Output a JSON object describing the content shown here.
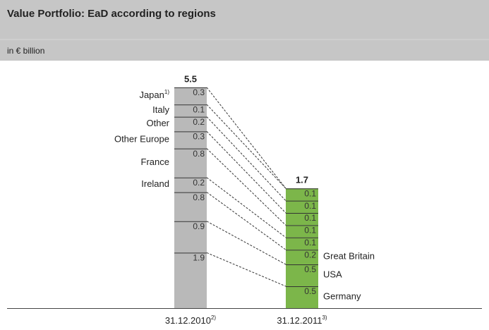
{
  "chart_data": {
    "type": "stacked-bar",
    "title": "Value Portfolio: EaD according to regions",
    "subtitle": "in € billion",
    "bars": [
      {
        "date": "31.12.2010",
        "note": "2)",
        "total": 5.5,
        "color": "#b9b9b9",
        "segments": [
          {
            "label": "Japan",
            "note": "1)",
            "value": 0.3
          },
          {
            "label": "Italy",
            "value": 0.1
          },
          {
            "label": "Other",
            "value": 0.2
          },
          {
            "label": "Other Europe",
            "value": 0.3
          },
          {
            "label": "France",
            "value": 0.8
          },
          {
            "label": "Ireland",
            "value": 0.2
          },
          {
            "label": null,
            "value": 0.8
          },
          {
            "label": null,
            "value": 0.9
          },
          {
            "label": null,
            "value": 1.9
          }
        ]
      },
      {
        "date": "31.12.2011",
        "note": "3)",
        "total": 1.7,
        "color": "#7cb64a",
        "segments": [
          {
            "label": null,
            "value": 0.1
          },
          {
            "label": null,
            "value": 0.1
          },
          {
            "label": null,
            "value": 0.1
          },
          {
            "label": null,
            "value": 0.1
          },
          {
            "label": null,
            "value": 0.1
          },
          {
            "label": "Great Britain",
            "value": 0.2
          },
          {
            "label": "USA",
            "value": 0.5
          },
          {
            "label": "Germany",
            "value": 0.5
          }
        ]
      }
    ]
  }
}
